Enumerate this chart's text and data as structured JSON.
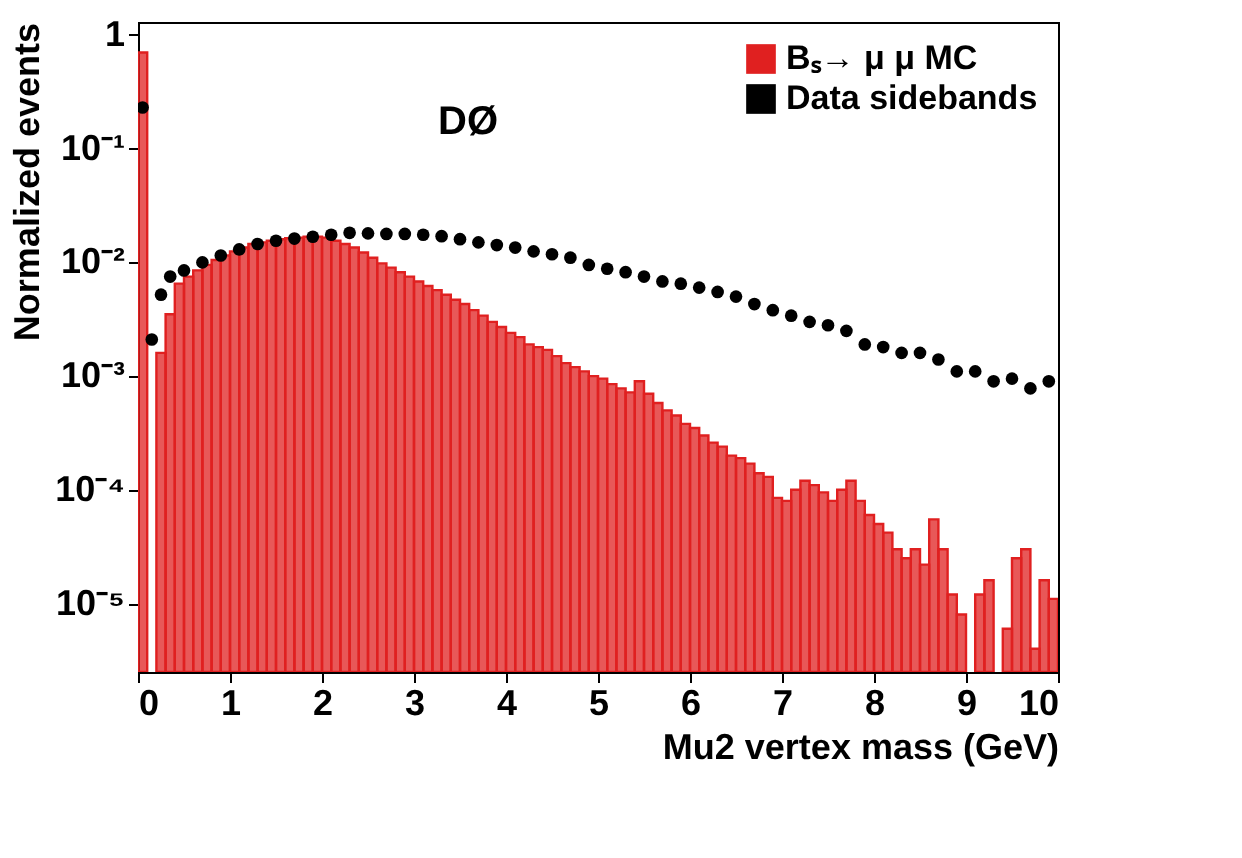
{
  "chart_data": {
    "type": "histogram",
    "xlabel": "Mu2 vertex mass (GeV)",
    "ylabel": "Normalized events",
    "annotations": [
      "DØ"
    ],
    "bins": [
      0.0,
      0.1,
      0.2,
      0.3,
      0.4,
      0.5,
      0.6,
      0.7,
      0.8,
      0.9,
      1.0,
      1.1,
      1.2,
      1.3,
      1.4,
      1.5,
      1.6,
      1.7,
      1.8,
      1.9,
      2.0,
      2.1,
      2.2,
      2.3,
      2.4,
      2.5,
      2.6,
      2.7,
      2.8,
      2.9,
      3.0,
      3.1,
      3.2,
      3.3,
      3.4,
      3.5,
      3.6,
      3.7,
      3.8,
      3.9,
      4.0,
      4.1,
      4.2,
      4.3,
      4.4,
      4.5,
      4.6,
      4.7,
      4.8,
      4.9,
      5.0,
      5.1,
      5.2,
      5.3,
      5.4,
      5.5,
      5.6,
      5.7,
      5.8,
      5.9,
      6.0,
      6.1,
      6.2,
      6.3,
      6.4,
      6.5,
      6.6,
      6.7,
      6.8,
      6.9,
      7.0,
      7.1,
      7.2,
      7.3,
      7.4,
      7.5,
      7.6,
      7.7,
      7.8,
      7.9,
      8.0,
      8.1,
      8.2,
      8.3,
      8.4,
      8.5,
      8.6,
      8.7,
      8.8,
      8.9,
      9.0,
      9.1,
      9.2,
      9.3,
      9.4,
      9.5,
      9.6,
      9.7,
      9.8,
      9.9,
      10.0
    ],
    "series": [
      {
        "name": "Bₛ→ μ μ MC",
        "color": "#e02020",
        "values": [
          0.7,
          null,
          0.0016,
          0.0035,
          0.0065,
          0.0075,
          0.0085,
          0.0095,
          0.0105,
          0.0115,
          0.0125,
          0.0135,
          0.0145,
          0.015,
          0.0155,
          0.016,
          0.0163,
          0.0165,
          0.0168,
          0.0168,
          0.0165,
          0.0155,
          0.0145,
          0.0135,
          0.0122,
          0.011,
          0.0098,
          0.009,
          0.0082,
          0.0075,
          0.0068,
          0.0062,
          0.0057,
          0.0052,
          0.0047,
          0.0043,
          0.0038,
          0.0034,
          0.003,
          0.0027,
          0.0024,
          0.0022,
          0.0019,
          0.0018,
          0.0017,
          0.0015,
          0.0013,
          0.0012,
          0.0011,
          0.001,
          0.00095,
          0.00085,
          0.00078,
          0.00072,
          0.0009,
          0.0007,
          0.00058,
          0.0005,
          0.00045,
          0.00038,
          0.00035,
          0.0003,
          0.00026,
          0.00024,
          0.0002,
          0.00019,
          0.00017,
          0.00014,
          0.00013,
          8.5e-05,
          8e-05,
          0.0001,
          0.00012,
          0.00011,
          9.5e-05,
          8e-05,
          0.0001,
          0.00012,
          8e-05,
          6e-05,
          5e-05,
          4.2e-05,
          3e-05,
          2.5e-05,
          3e-05,
          2.2e-05,
          5.5e-05,
          3e-05,
          1.2e-05,
          8e-06,
          null,
          1.2e-05,
          1.6e-05,
          null,
          6e-06,
          2.5e-05,
          3e-05,
          4e-06,
          1.6e-05,
          1.1e-05
        ]
      },
      {
        "name": "Data sidebands",
        "type": "scatter",
        "color": "#000000",
        "x": [
          0.05,
          0.15,
          0.25,
          0.35,
          0.5,
          0.7,
          0.9,
          1.1,
          1.3,
          1.5,
          1.7,
          1.9,
          2.1,
          2.3,
          2.5,
          2.7,
          2.9,
          3.1,
          3.3,
          3.5,
          3.7,
          3.9,
          4.1,
          4.3,
          4.5,
          4.7,
          4.9,
          5.1,
          5.3,
          5.5,
          5.7,
          5.9,
          6.1,
          6.3,
          6.5,
          6.7,
          6.9,
          7.1,
          7.3,
          7.5,
          7.7,
          7.9,
          8.1,
          8.3,
          8.5,
          8.7,
          8.9,
          9.1,
          9.3,
          9.5,
          9.7,
          9.9
        ],
        "values": [
          0.23,
          0.0021,
          0.0052,
          0.0075,
          0.0085,
          0.01,
          0.0115,
          0.013,
          0.0145,
          0.0155,
          0.0162,
          0.0168,
          0.0175,
          0.0182,
          0.018,
          0.0178,
          0.0178,
          0.0175,
          0.017,
          0.016,
          0.015,
          0.0142,
          0.0135,
          0.0125,
          0.0118,
          0.011,
          0.0095,
          0.0088,
          0.0082,
          0.0075,
          0.0068,
          0.0065,
          0.006,
          0.0055,
          0.005,
          0.0043,
          0.0038,
          0.0034,
          0.003,
          0.0028,
          0.0025,
          0.0019,
          0.0018,
          0.0016,
          0.0016,
          0.0014,
          0.0011,
          0.0011,
          0.0009,
          0.00095,
          0.00078,
          0.0009
        ]
      }
    ],
    "xlim": [
      0,
      10
    ],
    "xticks": [
      0,
      1,
      2,
      3,
      4,
      5,
      6,
      7,
      8,
      9,
      10
    ],
    "ylim": [
      2.5e-06,
      1.3
    ],
    "log": true,
    "yticks": [
      {
        "value": 1,
        "label": "1"
      },
      {
        "value": 0.1,
        "label": "10⁻¹"
      },
      {
        "value": 0.01,
        "label": "10⁻²"
      },
      {
        "value": 0.001,
        "label": "10⁻³"
      },
      {
        "value": 0.0001,
        "label": "10⁻⁴"
      },
      {
        "value": 1e-05,
        "label": "10⁻⁵"
      }
    ],
    "legend": "top right",
    "grid": false,
    "marker": "circle"
  }
}
